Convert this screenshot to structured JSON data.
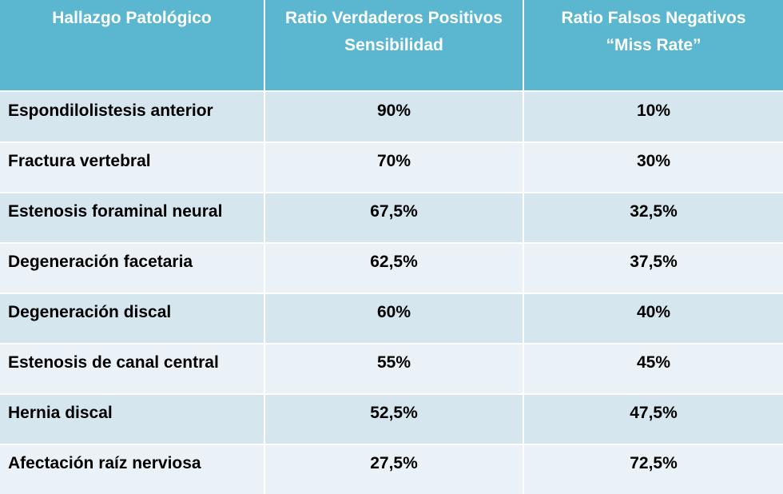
{
  "table": {
    "headers": [
      {
        "lines": [
          "Hallazgo Patológico"
        ]
      },
      {
        "lines": [
          "Ratio Verdaderos Positivos",
          "Sensibilidad"
        ]
      },
      {
        "lines": [
          "Ratio Falsos Negativos",
          "“Miss Rate”"
        ]
      }
    ],
    "rows": [
      {
        "finding": "Espondilolistesis anterior",
        "sensitivity": "90%",
        "miss_rate": "10%"
      },
      {
        "finding": "Fractura vertebral",
        "sensitivity": "70%",
        "miss_rate": "30%"
      },
      {
        "finding": "Estenosis foraminal neural",
        "sensitivity": "67,5%",
        "miss_rate": "32,5%"
      },
      {
        "finding": "Degeneración facetaria",
        "sensitivity": "62,5%",
        "miss_rate": "37,5%"
      },
      {
        "finding": "Degeneración discal",
        "sensitivity": "60%",
        "miss_rate": "40%"
      },
      {
        "finding": "Estenosis de canal central",
        "sensitivity": "55%",
        "miss_rate": "45%"
      },
      {
        "finding": "Hernia discal",
        "sensitivity": "52,5%",
        "miss_rate": "47,5%"
      },
      {
        "finding": "Afectación raíz nerviosa",
        "sensitivity": "27,5%",
        "miss_rate": "72,5%"
      }
    ]
  },
  "colors": {
    "header_bg": "#5bb7cf",
    "row_dark": "#d6e6ef",
    "row_light": "#ebf2f7"
  }
}
